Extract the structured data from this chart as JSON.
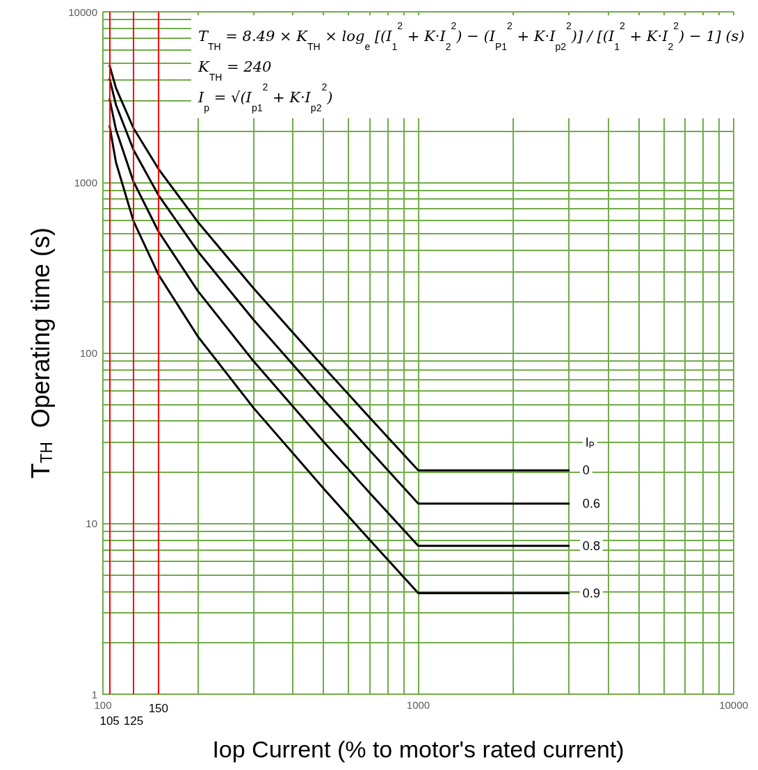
{
  "chart_data": {
    "type": "line",
    "xlabel": "Iop Current (% to motor's rated current)",
    "ylabel": "T$_{TH}$  Operating time (s)",
    "legend_title": "I$_{P}$",
    "x": [
      105,
      110,
      125,
      150,
      200,
      300,
      500,
      700,
      1000,
      3000
    ],
    "series": [
      {
        "name": "0",
        "color": "#000000",
        "values": [
          4840,
          3570,
          2080,
          1200,
          586,
          240,
          83,
          42,
          20.5,
          20.5
        ]
      },
      {
        "name": "0.6",
        "color": "#000000",
        "values": [
          4040,
          2850,
          1550,
          842,
          394,
          157,
          53.6,
          27,
          13.1,
          13.1
        ]
      },
      {
        "name": "0.8",
        "color": "#000000",
        "values": [
          3070,
          2040,
          1010,
          516,
          231,
          89.7,
          30.3,
          15.2,
          7.4,
          7.4
        ]
      },
      {
        "name": "0.9",
        "color": "#000000",
        "values": [
          2140,
          1310,
          593,
          288,
          125,
          47.8,
          16.1,
          8.05,
          3.91,
          3.91
        ]
      }
    ],
    "log": "xy",
    "xlim": [
      100,
      10000
    ],
    "xticks": [
      100,
      {
        "value": 200,
        "label": null
      },
      {
        "value": 300,
        "label": null
      },
      {
        "value": 400,
        "label": null
      },
      {
        "value": 500,
        "label": null
      },
      {
        "value": 600,
        "label": null
      },
      {
        "value": 700,
        "label": null
      },
      {
        "value": 800,
        "label": null
      },
      {
        "value": 900,
        "label": null
      },
      1000,
      {
        "value": 2000,
        "label": null
      },
      {
        "value": 3000,
        "label": null
      },
      {
        "value": 4000,
        "label": null
      },
      {
        "value": 5000,
        "label": null
      },
      {
        "value": 6000,
        "label": null
      },
      {
        "value": 7000,
        "label": null
      },
      {
        "value": 8000,
        "label": null
      },
      {
        "value": 9000,
        "label": null
      },
      10000
    ],
    "ylim": [
      1,
      10000
    ],
    "yticks": [
      1,
      {
        "value": 2,
        "label": null
      },
      {
        "value": 3,
        "label": null
      },
      {
        "value": 4,
        "label": null
      },
      {
        "value": 5,
        "label": null
      },
      {
        "value": 6,
        "label": null
      },
      {
        "value": 7,
        "label": null
      },
      {
        "value": 8,
        "label": null
      },
      {
        "value": 9,
        "label": null
      },
      10,
      {
        "value": 20,
        "label": null
      },
      {
        "value": 30,
        "label": null
      },
      {
        "value": 40,
        "label": null
      },
      {
        "value": 50,
        "label": null
      },
      {
        "value": 60,
        "label": null
      },
      {
        "value": 70,
        "label": null
      },
      {
        "value": 80,
        "label": null
      },
      {
        "value": 90,
        "label": null
      },
      100,
      {
        "value": 200,
        "label": null
      },
      {
        "value": 300,
        "label": null
      },
      {
        "value": 400,
        "label": null
      },
      {
        "value": 500,
        "label": null
      },
      {
        "value": 600,
        "label": null
      },
      {
        "value": 700,
        "label": null
      },
      {
        "value": 800,
        "label": null
      },
      {
        "value": 900,
        "label": null
      },
      1000,
      {
        "value": 2000,
        "label": null
      },
      {
        "value": 3000,
        "label": null
      },
      {
        "value": 4000,
        "label": null
      },
      {
        "value": 5000,
        "label": null
      },
      {
        "value": 6000,
        "label": null
      },
      {
        "value": 7000,
        "label": null
      },
      {
        "value": 8000,
        "label": null
      },
      {
        "value": 9000,
        "label": null
      },
      10000
    ],
    "grid": true,
    "legend": false,
    "marker": "none",
    "line_style": "solid",
    "ref_lines": [
      {
        "axis": "x",
        "value": 105,
        "label": "105",
        "color": "#ff0000"
      },
      {
        "axis": "x",
        "value": 125,
        "label": "125",
        "color": "#ff0000"
      },
      {
        "axis": "x",
        "value": 150,
        "label": "150",
        "color": "#ff0000"
      }
    ],
    "annotations": [
      "T$_{TH}$ = 8.49 × K$_{TH}$ × log$_{e}$ [(I$_{1}$$^{2}$ + K·I$_{2}$$^{2}$) − (I$_{P1}$$^{2}$ + K·I$_{p2}$$^{2}$)] / [(I$_{1}$$^{2}$ + K·I$_{2}$$^{2}$) − 1] (s)",
      "K$_{TH}$ = 240",
      "I$_{p}$ = √(I$_{p1}$$^{2}$ + K·I$_{p2}$$^{2}$)"
    ]
  }
}
